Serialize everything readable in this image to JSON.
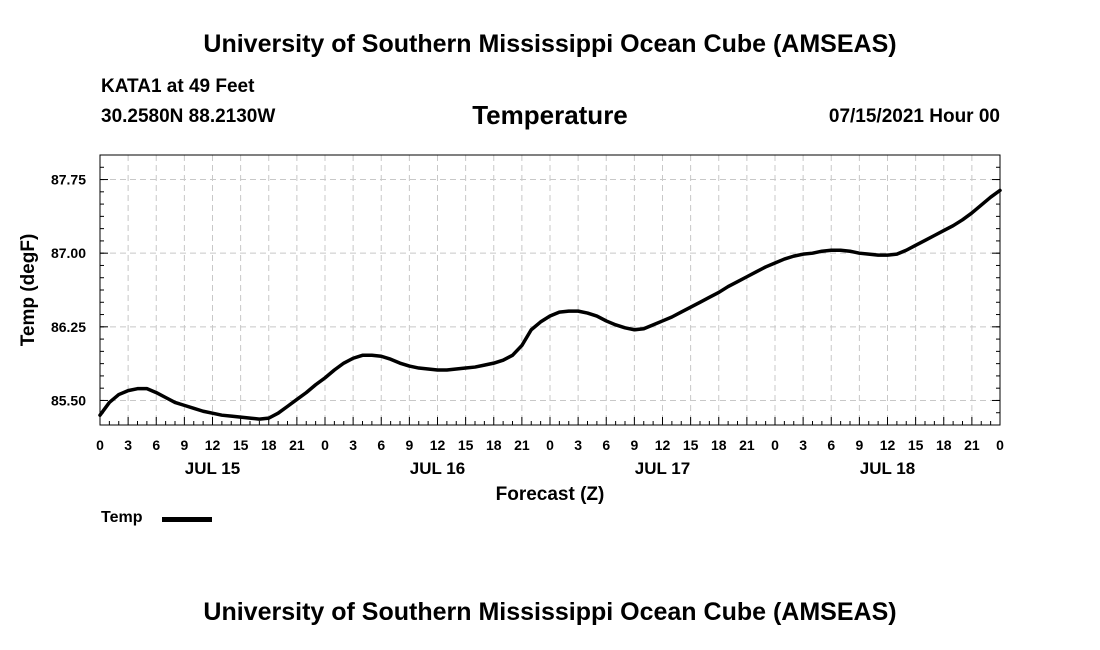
{
  "header": {
    "title": "University of Southern Mississippi Ocean Cube (AMSEAS)",
    "station": "KATA1 at 49 Feet",
    "coordinates": "30.2580N  88.2130W",
    "datetime": "07/15/2021 Hour 00"
  },
  "footer": {
    "title": "University of Southern Mississippi Ocean Cube (AMSEAS)"
  },
  "legend": {
    "label": "Temp"
  },
  "chart_data": {
    "type": "line",
    "title": "Temperature",
    "xlabel": "Forecast (Z)",
    "ylabel": "Temp (degF)",
    "xlim": [
      0,
      96
    ],
    "ylim": [
      85.25,
      88.0
    ],
    "y_ticks": [
      85.5,
      86.25,
      87.0,
      87.75
    ],
    "y_tick_labels": [
      "85.50",
      "86.25",
      "87.00",
      "87.75"
    ],
    "x_ticks": [
      0,
      3,
      6,
      9,
      12,
      15,
      18,
      21,
      24,
      27,
      30,
      33,
      36,
      39,
      42,
      45,
      48,
      51,
      54,
      57,
      60,
      63,
      66,
      69,
      72,
      75,
      78,
      81,
      84,
      87,
      90,
      93,
      96
    ],
    "x_tick_labels": [
      "0",
      "3",
      "6",
      "9",
      "12",
      "15",
      "18",
      "21",
      "0",
      "3",
      "6",
      "9",
      "12",
      "15",
      "18",
      "21",
      "0",
      "3",
      "6",
      "9",
      "12",
      "15",
      "18",
      "21",
      "0",
      "3",
      "6",
      "9",
      "12",
      "15",
      "18",
      "21",
      "0"
    ],
    "date_labels": [
      {
        "hour": 12,
        "label": "JUL 15"
      },
      {
        "hour": 36,
        "label": "JUL 16"
      },
      {
        "hour": 60,
        "label": "JUL 17"
      },
      {
        "hour": 84,
        "label": "JUL 18"
      }
    ],
    "grid": true,
    "legend_position": "bottom-left",
    "series": [
      {
        "name": "Temp",
        "x": [
          0,
          1,
          2,
          3,
          4,
          5,
          6,
          7,
          8,
          9,
          10,
          11,
          12,
          13,
          14,
          15,
          16,
          17,
          18,
          19,
          20,
          21,
          22,
          23,
          24,
          25,
          26,
          27,
          28,
          29,
          30,
          31,
          32,
          33,
          34,
          35,
          36,
          37,
          38,
          39,
          40,
          41,
          42,
          43,
          44,
          45,
          46,
          47,
          48,
          49,
          50,
          51,
          52,
          53,
          54,
          55,
          56,
          57,
          58,
          59,
          60,
          61,
          62,
          63,
          64,
          65,
          66,
          67,
          68,
          69,
          70,
          71,
          72,
          73,
          74,
          75,
          76,
          77,
          78,
          79,
          80,
          81,
          82,
          83,
          84,
          85,
          86,
          87,
          88,
          89,
          90,
          91,
          92,
          93,
          94,
          95,
          96
        ],
        "values": [
          85.35,
          85.48,
          85.56,
          85.6,
          85.62,
          85.62,
          85.58,
          85.53,
          85.48,
          85.45,
          85.42,
          85.39,
          85.37,
          85.35,
          85.34,
          85.33,
          85.32,
          85.31,
          85.32,
          85.37,
          85.44,
          85.51,
          85.58,
          85.66,
          85.73,
          85.81,
          85.88,
          85.93,
          85.96,
          85.96,
          85.95,
          85.92,
          85.88,
          85.85,
          85.83,
          85.82,
          85.81,
          85.81,
          85.82,
          85.83,
          85.84,
          85.86,
          85.88,
          85.91,
          85.96,
          86.06,
          86.22,
          86.3,
          86.36,
          86.4,
          86.41,
          86.41,
          86.39,
          86.36,
          86.31,
          86.27,
          86.24,
          86.22,
          86.23,
          86.27,
          86.31,
          86.35,
          86.4,
          86.45,
          86.5,
          86.55,
          86.6,
          86.66,
          86.71,
          86.76,
          86.81,
          86.86,
          86.9,
          86.94,
          86.97,
          86.99,
          87.0,
          87.02,
          87.03,
          87.03,
          87.02,
          87.0,
          86.99,
          86.98,
          86.98,
          86.99,
          87.03,
          87.08,
          87.13,
          87.18,
          87.23,
          87.28,
          87.34,
          87.41,
          87.49,
          87.57,
          87.64
        ]
      }
    ]
  }
}
